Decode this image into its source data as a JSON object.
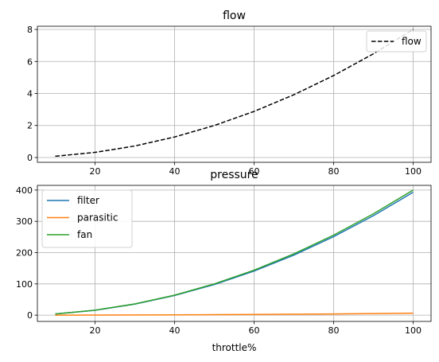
{
  "chart_data": [
    {
      "type": "line",
      "title": "flow",
      "xlabel": "",
      "ylabel": "",
      "x": [
        10,
        20,
        30,
        40,
        50,
        60,
        70,
        80,
        90,
        100
      ],
      "xlim": [
        5.5,
        104.5
      ],
      "ylim": [
        -0.3,
        8.2
      ],
      "xticks": [
        20,
        40,
        60,
        80,
        100
      ],
      "yticks": [
        0,
        2,
        4,
        6,
        8
      ],
      "grid": true,
      "legend": "upper-right",
      "series": [
        {
          "name": "flow",
          "color": "#000000",
          "style": "dashed",
          "values": [
            0.08,
            0.32,
            0.72,
            1.28,
            2.0,
            2.88,
            3.92,
            5.12,
            6.48,
            8.0
          ]
        }
      ]
    },
    {
      "type": "line",
      "title": "pressure",
      "xlabel": "throttle%",
      "ylabel": "",
      "x": [
        10,
        20,
        30,
        40,
        50,
        60,
        70,
        80,
        90,
        100
      ],
      "xlim": [
        5.5,
        104.5
      ],
      "ylim": [
        -20,
        415
      ],
      "xticks": [
        20,
        40,
        60,
        80,
        100
      ],
      "yticks": [
        0,
        100,
        200,
        300,
        400
      ],
      "grid": true,
      "legend": "upper-left",
      "series": [
        {
          "name": "filter",
          "color": "#1f77b4",
          "style": "solid",
          "values": [
            3.9,
            15.7,
            35.3,
            62.8,
            98,
            141,
            192,
            251,
            318,
            393
          ]
        },
        {
          "name": "parasitic",
          "color": "#ff7f0e",
          "style": "solid",
          "values": [
            0.06,
            0.25,
            0.56,
            1.0,
            1.6,
            2.3,
            3.1,
            4.0,
            5.1,
            6.3
          ]
        },
        {
          "name": "fan",
          "color": "#2ca02c",
          "style": "solid",
          "values": [
            4.0,
            16.0,
            36.0,
            64.0,
            100,
            144,
            196,
            256,
            324,
            400
          ]
        }
      ]
    }
  ]
}
